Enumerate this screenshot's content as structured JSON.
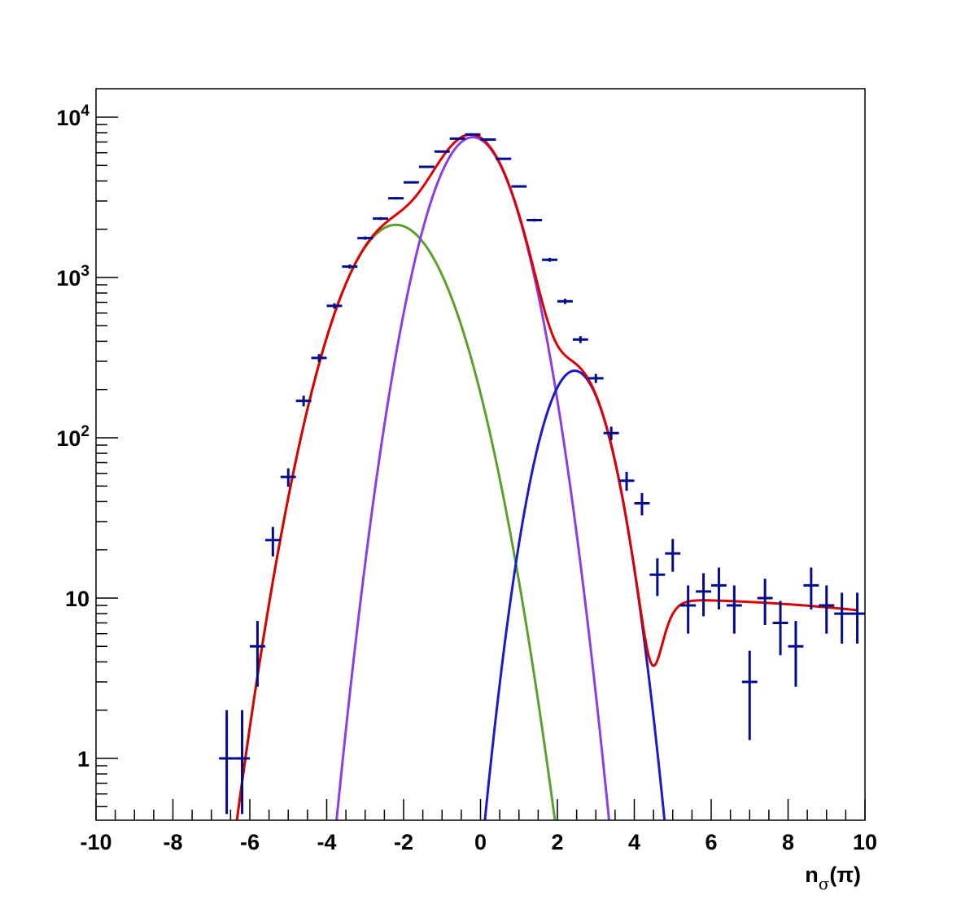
{
  "chart_data": {
    "type": "scatter",
    "title": "",
    "xlabel": {
      "main": "n",
      "subscript": "σ",
      "suffix": "(π)"
    },
    "ylabel": "",
    "xlim": [
      -10,
      10
    ],
    "ylim": [
      0.45,
      15000
    ],
    "yscale": "log",
    "grid": false,
    "x_ticks": [
      {
        "value": -10,
        "label": "-10"
      },
      {
        "value": -8,
        "label": "-8"
      },
      {
        "value": -6,
        "label": "-6"
      },
      {
        "value": -4,
        "label": "-4"
      },
      {
        "value": -2,
        "label": "-2"
      },
      {
        "value": 0,
        "label": "0"
      },
      {
        "value": 2,
        "label": "2"
      },
      {
        "value": 4,
        "label": "4"
      },
      {
        "value": 6,
        "label": "6"
      },
      {
        "value": 8,
        "label": "8"
      },
      {
        "value": 10,
        "label": "10"
      }
    ],
    "y_ticks": [
      {
        "value": 1,
        "label": "1",
        "exp": ""
      },
      {
        "value": 10,
        "label": "10",
        "exp": ""
      },
      {
        "value": 100,
        "label": "10",
        "exp": "2"
      },
      {
        "value": 1000,
        "label": "10",
        "exp": "3"
      },
      {
        "value": 10000,
        "label": "10",
        "exp": "4"
      }
    ],
    "bin_half_width": 0.2,
    "data_points": [
      {
        "x": -6.6,
        "y": 1,
        "err": 1
      },
      {
        "x": -6.2,
        "y": 1,
        "err": 1
      },
      {
        "x": -5.8,
        "y": 5,
        "err": 2.2
      },
      {
        "x": -5.4,
        "y": 23,
        "err": 4.8
      },
      {
        "x": -5.0,
        "y": 57,
        "err": 7.5
      },
      {
        "x": -4.6,
        "y": 170,
        "err": 13
      },
      {
        "x": -4.2,
        "y": 315,
        "err": 17.7
      },
      {
        "x": -3.8,
        "y": 665,
        "err": 25.8
      },
      {
        "x": -3.4,
        "y": 1170,
        "err": 34.2
      },
      {
        "x": -3.0,
        "y": 1760,
        "err": 42
      },
      {
        "x": -2.6,
        "y": 2330,
        "err": 48.3
      },
      {
        "x": -2.2,
        "y": 3120,
        "err": 55.9
      },
      {
        "x": -1.8,
        "y": 3920,
        "err": 62.6
      },
      {
        "x": -1.4,
        "y": 4900,
        "err": 70
      },
      {
        "x": -1.0,
        "y": 6100,
        "err": 78.1
      },
      {
        "x": -0.6,
        "y": 7350,
        "err": 85.7
      },
      {
        "x": -0.2,
        "y": 7800,
        "err": 88.3
      },
      {
        "x": 0.2,
        "y": 7250,
        "err": 85.1
      },
      {
        "x": 0.6,
        "y": 5500,
        "err": 74.2
      },
      {
        "x": 1.0,
        "y": 3700,
        "err": 60.8
      },
      {
        "x": 1.4,
        "y": 2280,
        "err": 47.7
      },
      {
        "x": 1.8,
        "y": 1290,
        "err": 35.9
      },
      {
        "x": 2.2,
        "y": 710,
        "err": 26.6
      },
      {
        "x": 2.6,
        "y": 410,
        "err": 20.2
      },
      {
        "x": 3.0,
        "y": 235,
        "err": 15.3
      },
      {
        "x": 3.4,
        "y": 107,
        "err": 10.3
      },
      {
        "x": 3.8,
        "y": 54,
        "err": 7.3
      },
      {
        "x": 4.2,
        "y": 39,
        "err": 6.2
      },
      {
        "x": 4.6,
        "y": 14,
        "err": 3.7
      },
      {
        "x": 5.0,
        "y": 19,
        "err": 4.4
      },
      {
        "x": 5.4,
        "y": 9,
        "err": 3
      },
      {
        "x": 5.8,
        "y": 11,
        "err": 3.3
      },
      {
        "x": 6.2,
        "y": 12,
        "err": 3.5
      },
      {
        "x": 6.6,
        "y": 9,
        "err": 3
      },
      {
        "x": 7.0,
        "y": 3,
        "err": 1.7
      },
      {
        "x": 7.4,
        "y": 10,
        "err": 3.2
      },
      {
        "x": 7.8,
        "y": 7,
        "err": 2.6
      },
      {
        "x": 8.2,
        "y": 5,
        "err": 2.2
      },
      {
        "x": 8.6,
        "y": 12,
        "err": 3.5
      },
      {
        "x": 9.0,
        "y": 9,
        "err": 3
      },
      {
        "x": 9.4,
        "y": 8,
        "err": 2.8
      },
      {
        "x": 9.8,
        "y": 8,
        "err": 2.8
      }
    ],
    "curves": [
      {
        "color": "#5aa02c",
        "x_range": [
          -7.0,
          3.0
        ],
        "amplitude": 2130,
        "mean": -2.2,
        "sigma": 1.0
      },
      {
        "color": "#8a3ee6",
        "x_range": [
          -5.0,
          5.0
        ],
        "amplitude": 7500,
        "mean": -0.2,
        "sigma": 0.8
      },
      {
        "color": "#1a1acc",
        "x_range": [
          -1.0,
          6.0
        ],
        "amplitude": 262,
        "mean": 2.45,
        "sigma": 0.65
      },
      {
        "color": "#dd0000",
        "x_range": [
          -8.0,
          9.8
        ],
        "type": "sum",
        "background": {
          "amplitude": 9.8,
          "x_ref": 5.0,
          "decay": 0.00733,
          "quad": 0.00515
        }
      }
    ],
    "colors": {
      "data_points": "#000c8c",
      "frame": "#000000"
    }
  }
}
